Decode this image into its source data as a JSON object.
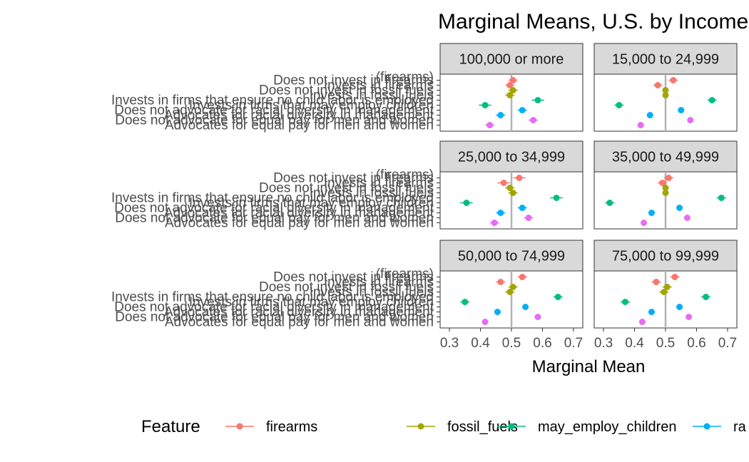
{
  "chart_data": {
    "type": "scatter",
    "title": "Marginal Means, U.S. by Income",
    "xlabel": "Marginal Mean",
    "ylabel": "",
    "xlim": [
      0.27,
      0.73
    ],
    "xticks": [
      0.3,
      0.4,
      0.5,
      0.6,
      0.7
    ],
    "xtick_labels": [
      "0.3",
      "0.4",
      "0.5",
      "0.6",
      "0.7"
    ],
    "reference_line": 0.5,
    "grid": false,
    "facet_columns": 2,
    "y_levels": [
      "Does not invest in firearms",
      "Invests in firearms",
      "Does not invest in fossil fuels",
      "Invests in fossil fuels",
      "Invests in firms that ensure no child labor is employed",
      "Invests in firms that may employ children",
      "Does not advocate for racial diversity in management",
      "Advocates for racial diversity in management",
      "Does not advocate for equal pay for men and women",
      "Advocates for equal pay for men and women"
    ],
    "y_label_visible": "(firearms)",
    "legend": {
      "title": "Feature",
      "position": "bottom",
      "items": [
        {
          "label": "firearms",
          "color": "#F8766D"
        },
        {
          "label": "fossil_fuels",
          "color": "#A3A500"
        },
        {
          "label": "may_employ_children",
          "color": "#00BF7D"
        },
        {
          "label": "ra",
          "color": "#00B0F6"
        }
      ]
    },
    "series_colors": [
      "#F8766D",
      "#A3A500",
      "#00BF7D",
      "#00B0F6",
      "#E76BF3"
    ],
    "level_series": [
      0,
      0,
      1,
      1,
      2,
      2,
      3,
      3,
      4,
      4
    ],
    "panels": [
      {
        "label": "100,000 or more",
        "mm": [
          0.505,
          0.495,
          0.505,
          0.495,
          0.585,
          0.415,
          0.535,
          0.465,
          0.57,
          0.43
        ],
        "lo": [
          0.49,
          0.48,
          0.49,
          0.48,
          0.565,
          0.395,
          0.52,
          0.45,
          0.555,
          0.415
        ],
        "hi": [
          0.52,
          0.51,
          0.52,
          0.51,
          0.605,
          0.435,
          0.55,
          0.48,
          0.585,
          0.445
        ]
      },
      {
        "label": "15,000 to 24,999",
        "mm": [
          0.525,
          0.475,
          0.5,
          0.5,
          0.65,
          0.35,
          0.55,
          0.45,
          0.58,
          0.42
        ],
        "lo": [
          0.51,
          0.46,
          0.49,
          0.49,
          0.635,
          0.335,
          0.54,
          0.44,
          0.57,
          0.41
        ],
        "hi": [
          0.54,
          0.49,
          0.51,
          0.51,
          0.665,
          0.365,
          0.56,
          0.46,
          0.59,
          0.43
        ]
      },
      {
        "label": "25,000 to 34,999",
        "mm": [
          0.525,
          0.475,
          0.495,
          0.505,
          0.645,
          0.355,
          0.535,
          0.465,
          0.555,
          0.445
        ],
        "lo": [
          0.505,
          0.455,
          0.48,
          0.49,
          0.625,
          0.335,
          0.52,
          0.45,
          0.54,
          0.43
        ],
        "hi": [
          0.545,
          0.495,
          0.51,
          0.52,
          0.665,
          0.375,
          0.55,
          0.48,
          0.57,
          0.46
        ]
      },
      {
        "label": "35,000 to 49,999",
        "mm": [
          0.51,
          0.49,
          0.5,
          0.5,
          0.68,
          0.32,
          0.545,
          0.455,
          0.57,
          0.43
        ],
        "lo": [
          0.495,
          0.475,
          0.49,
          0.49,
          0.665,
          0.305,
          0.535,
          0.445,
          0.56,
          0.42
        ],
        "hi": [
          0.525,
          0.505,
          0.51,
          0.51,
          0.695,
          0.335,
          0.555,
          0.465,
          0.58,
          0.44
        ]
      },
      {
        "label": "50,000 to 74,999",
        "mm": [
          0.535,
          0.465,
          0.505,
          0.495,
          0.65,
          0.35,
          0.545,
          0.455,
          0.585,
          0.415
        ],
        "lo": [
          0.52,
          0.45,
          0.49,
          0.48,
          0.635,
          0.335,
          0.535,
          0.445,
          0.575,
          0.405
        ],
        "hi": [
          0.55,
          0.48,
          0.52,
          0.51,
          0.665,
          0.365,
          0.555,
          0.465,
          0.595,
          0.425
        ]
      },
      {
        "label": "75,000 to 99,999",
        "mm": [
          0.53,
          0.47,
          0.505,
          0.495,
          0.63,
          0.37,
          0.545,
          0.455,
          0.575,
          0.425
        ],
        "lo": [
          0.515,
          0.455,
          0.49,
          0.48,
          0.615,
          0.355,
          0.535,
          0.445,
          0.565,
          0.415
        ],
        "hi": [
          0.545,
          0.485,
          0.52,
          0.51,
          0.645,
          0.385,
          0.555,
          0.465,
          0.585,
          0.435
        ]
      }
    ]
  }
}
